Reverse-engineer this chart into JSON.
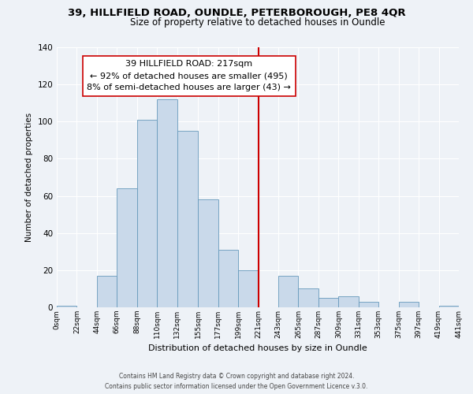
{
  "title1": "39, HILLFIELD ROAD, OUNDLE, PETERBOROUGH, PE8 4QR",
  "title2": "Size of property relative to detached houses in Oundle",
  "xlabel": "Distribution of detached houses by size in Oundle",
  "ylabel": "Number of detached properties",
  "bin_edges": [
    0,
    22,
    44,
    66,
    88,
    110,
    132,
    155,
    177,
    199,
    221,
    243,
    265,
    287,
    309,
    331,
    353,
    375,
    397,
    419,
    441
  ],
  "bar_heights": [
    1,
    0,
    17,
    64,
    101,
    112,
    95,
    58,
    31,
    20,
    0,
    17,
    10,
    5,
    6,
    3,
    0,
    3,
    0,
    1
  ],
  "bar_color": "#c9d9ea",
  "bar_edge_color": "#6699bb",
  "vline_x": 221,
  "vline_color": "#cc0000",
  "annotation_text": "39 HILLFIELD ROAD: 217sqm\n← 92% of detached houses are smaller (495)\n8% of semi-detached houses are larger (43) →",
  "annotation_box_color": "#ffffff",
  "annotation_box_edge_color": "#cc0000",
  "ylim": [
    0,
    140
  ],
  "yticks": [
    0,
    20,
    40,
    60,
    80,
    100,
    120,
    140
  ],
  "tick_labels": [
    "0sqm",
    "22sqm",
    "44sqm",
    "66sqm",
    "88sqm",
    "110sqm",
    "132sqm",
    "155sqm",
    "177sqm",
    "199sqm",
    "221sqm",
    "243sqm",
    "265sqm",
    "287sqm",
    "309sqm",
    "331sqm",
    "353sqm",
    "375sqm",
    "397sqm",
    "419sqm",
    "441sqm"
  ],
  "footer1": "Contains HM Land Registry data © Crown copyright and database right 2024.",
  "footer2": "Contains public sector information licensed under the Open Government Licence v.3.0.",
  "background_color": "#eef2f7",
  "grid_color": "#ffffff",
  "title_fontsize": 9.5,
  "subtitle_fontsize": 8.5,
  "annotation_fontsize": 8,
  "footer_fontsize": 5.5
}
